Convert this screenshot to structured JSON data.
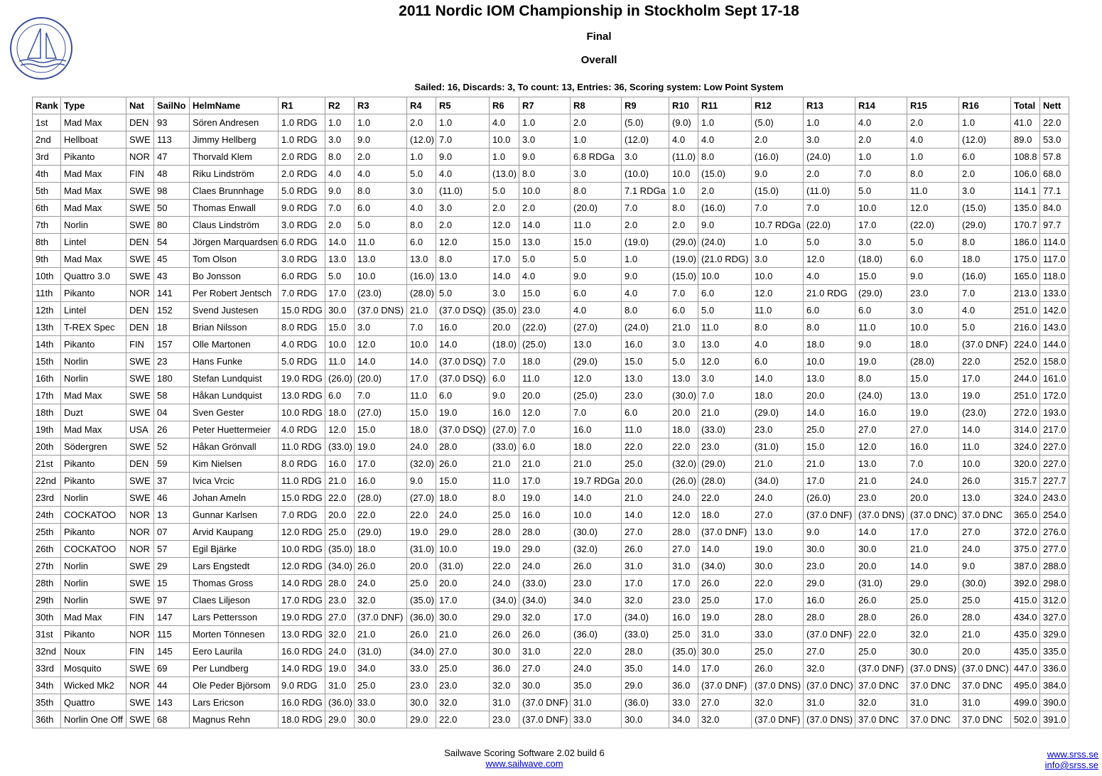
{
  "header": {
    "title": "2011 Nordic IOM Championship in Stockholm Sept 17-18",
    "subtitle": "Final",
    "heading": "Overall",
    "summary": "Sailed: 16, Discards: 3, To count: 13, Entries: 36, Scoring system: Low Point System"
  },
  "table": {
    "columns": [
      "Rank",
      "Type",
      "Nat",
      "SailNo",
      "HelmName",
      "R1",
      "R2",
      "R3",
      "R4",
      "R5",
      "R6",
      "R7",
      "R8",
      "R9",
      "R10",
      "R11",
      "R12",
      "R13",
      "R14",
      "R15",
      "R16",
      "Total",
      "Nett"
    ],
    "rows": [
      [
        "1st",
        "Mad Max",
        "DEN",
        "93",
        "Sören Andresen",
        "1.0 RDG",
        "1.0",
        "1.0",
        "2.0",
        "1.0",
        "4.0",
        "1.0",
        "2.0",
        "(5.0)",
        "(9.0)",
        "1.0",
        "(5.0)",
        "1.0",
        "4.0",
        "2.0",
        "1.0",
        "41.0",
        "22.0"
      ],
      [
        "2nd",
        "Hellboat",
        "SWE",
        "113",
        "Jimmy Hellberg",
        "1.0 RDG",
        "3.0",
        "9.0",
        "(12.0)",
        "7.0",
        "10.0",
        "3.0",
        "1.0",
        "(12.0)",
        "4.0",
        "4.0",
        "2.0",
        "3.0",
        "2.0",
        "4.0",
        "(12.0)",
        "89.0",
        "53.0"
      ],
      [
        "3rd",
        "Pikanto",
        "NOR",
        "47",
        "Thorvald Klem",
        "2.0 RDG",
        "8.0",
        "2.0",
        "1.0",
        "9.0",
        "1.0",
        "9.0",
        "6.8 RDGa",
        "3.0",
        "(11.0)",
        "8.0",
        "(16.0)",
        "(24.0)",
        "1.0",
        "1.0",
        "6.0",
        "108.8",
        "57.8"
      ],
      [
        "4th",
        "Mad Max",
        "FIN",
        "48",
        "Riku Lindström",
        "2.0 RDG",
        "4.0",
        "4.0",
        "5.0",
        "4.0",
        "(13.0)",
        "8.0",
        "3.0",
        "(10.0)",
        "10.0",
        "(15.0)",
        "9.0",
        "2.0",
        "7.0",
        "8.0",
        "2.0",
        "106.0",
        "68.0"
      ],
      [
        "5th",
        "Mad Max",
        "SWE",
        "98",
        "Claes Brunnhage",
        "5.0 RDG",
        "9.0",
        "8.0",
        "3.0",
        "(11.0)",
        "5.0",
        "10.0",
        "8.0",
        "7.1 RDGa",
        "1.0",
        "2.0",
        "(15.0)",
        "(11.0)",
        "5.0",
        "11.0",
        "3.0",
        "114.1",
        "77.1"
      ],
      [
        "6th",
        "Mad Max",
        "SWE",
        "50",
        "Thomas Enwall",
        "9.0 RDG",
        "7.0",
        "6.0",
        "4.0",
        "3.0",
        "2.0",
        "2.0",
        "(20.0)",
        "7.0",
        "8.0",
        "(16.0)",
        "7.0",
        "7.0",
        "10.0",
        "12.0",
        "(15.0)",
        "135.0",
        "84.0"
      ],
      [
        "7th",
        "Norlin",
        "SWE",
        "80",
        "Claus Lindström",
        "3.0 RDG",
        "2.0",
        "5.0",
        "8.0",
        "2.0",
        "12.0",
        "14.0",
        "11.0",
        "2.0",
        "2.0",
        "9.0",
        "10.7 RDGa",
        "(22.0)",
        "17.0",
        "(22.0)",
        "(29.0)",
        "170.7",
        "97.7"
      ],
      [
        "8th",
        "Lintel",
        "DEN",
        "54",
        "Jörgen Marquardsen",
        "6.0 RDG",
        "14.0",
        "11.0",
        "6.0",
        "12.0",
        "15.0",
        "13.0",
        "15.0",
        "(19.0)",
        "(29.0)",
        "(24.0)",
        "1.0",
        "5.0",
        "3.0",
        "5.0",
        "8.0",
        "186.0",
        "114.0"
      ],
      [
        "9th",
        "Mad Max",
        "SWE",
        "45",
        "Tom Olson",
        "3.0 RDG",
        "13.0",
        "13.0",
        "13.0",
        "8.0",
        "17.0",
        "5.0",
        "5.0",
        "1.0",
        "(19.0)",
        "(21.0 RDG)",
        "3.0",
        "12.0",
        "(18.0)",
        "6.0",
        "18.0",
        "175.0",
        "117.0"
      ],
      [
        "10th",
        "Quattro 3.0",
        "SWE",
        "43",
        "Bo Jonsson",
        "6.0 RDG",
        "5.0",
        "10.0",
        "(16.0)",
        "13.0",
        "14.0",
        "4.0",
        "9.0",
        "9.0",
        "(15.0)",
        "10.0",
        "10.0",
        "4.0",
        "15.0",
        "9.0",
        "(16.0)",
        "165.0",
        "118.0"
      ],
      [
        "11th",
        "Pikanto",
        "NOR",
        "141",
        "Per Robert Jentsch",
        "7.0 RDG",
        "17.0",
        "(23.0)",
        "(28.0)",
        "5.0",
        "3.0",
        "15.0",
        "6.0",
        "4.0",
        "7.0",
        "6.0",
        "12.0",
        "21.0 RDG",
        "(29.0)",
        "23.0",
        "7.0",
        "213.0",
        "133.0"
      ],
      [
        "12th",
        "Lintel",
        "DEN",
        "152",
        "Svend Justesen",
        "15.0 RDG",
        "30.0",
        "(37.0 DNS)",
        "21.0",
        "(37.0 DSQ)",
        "(35.0)",
        "23.0",
        "4.0",
        "8.0",
        "6.0",
        "5.0",
        "11.0",
        "6.0",
        "6.0",
        "3.0",
        "4.0",
        "251.0",
        "142.0"
      ],
      [
        "13th",
        "T-REX Spec",
        "DEN",
        "18",
        "Brian Nilsson",
        "8.0 RDG",
        "15.0",
        "3.0",
        "7.0",
        "16.0",
        "20.0",
        "(22.0)",
        "(27.0)",
        "(24.0)",
        "21.0",
        "11.0",
        "8.0",
        "8.0",
        "11.0",
        "10.0",
        "5.0",
        "216.0",
        "143.0"
      ],
      [
        "14th",
        "Pikanto",
        "FIN",
        "157",
        "Olle Martonen",
        "4.0 RDG",
        "10.0",
        "12.0",
        "10.0",
        "14.0",
        "(18.0)",
        "(25.0)",
        "13.0",
        "16.0",
        "3.0",
        "13.0",
        "4.0",
        "18.0",
        "9.0",
        "18.0",
        "(37.0 DNF)",
        "224.0",
        "144.0"
      ],
      [
        "15th",
        "Norlin",
        "SWE",
        "23",
        "Hans Funke",
        "5.0 RDG",
        "11.0",
        "14.0",
        "14.0",
        "(37.0 DSQ)",
        "7.0",
        "18.0",
        "(29.0)",
        "15.0",
        "5.0",
        "12.0",
        "6.0",
        "10.0",
        "19.0",
        "(28.0)",
        "22.0",
        "252.0",
        "158.0"
      ],
      [
        "16th",
        "Norlin",
        "SWE",
        "180",
        "Stefan Lundquist",
        "19.0 RDG",
        "(26.0)",
        "(20.0)",
        "17.0",
        "(37.0 DSQ)",
        "6.0",
        "11.0",
        "12.0",
        "13.0",
        "13.0",
        "3.0",
        "14.0",
        "13.0",
        "8.0",
        "15.0",
        "17.0",
        "244.0",
        "161.0"
      ],
      [
        "17th",
        "Mad Max",
        "SWE",
        "58",
        "Håkan Lundquist",
        "13.0 RDG",
        "6.0",
        "7.0",
        "11.0",
        "6.0",
        "9.0",
        "20.0",
        "(25.0)",
        "23.0",
        "(30.0)",
        "7.0",
        "18.0",
        "20.0",
        "(24.0)",
        "13.0",
        "19.0",
        "251.0",
        "172.0"
      ],
      [
        "18th",
        "Duzt",
        "SWE",
        "04",
        "Sven Gester",
        "10.0 RDG",
        "18.0",
        "(27.0)",
        "15.0",
        "19.0",
        "16.0",
        "12.0",
        "7.0",
        "6.0",
        "20.0",
        "21.0",
        "(29.0)",
        "14.0",
        "16.0",
        "19.0",
        "(23.0)",
        "272.0",
        "193.0"
      ],
      [
        "19th",
        "Mad Max",
        "USA",
        "26",
        "Peter Huettermeier",
        "4.0 RDG",
        "12.0",
        "15.0",
        "18.0",
        "(37.0 DSQ)",
        "(27.0)",
        "7.0",
        "16.0",
        "11.0",
        "18.0",
        "(33.0)",
        "23.0",
        "25.0",
        "27.0",
        "27.0",
        "14.0",
        "314.0",
        "217.0"
      ],
      [
        "20th",
        "Södergren",
        "SWE",
        "52",
        "Håkan Grönvall",
        "11.0 RDG",
        "(33.0)",
        "19.0",
        "24.0",
        "28.0",
        "(33.0)",
        "6.0",
        "18.0",
        "22.0",
        "22.0",
        "23.0",
        "(31.0)",
        "15.0",
        "12.0",
        "16.0",
        "11.0",
        "324.0",
        "227.0"
      ],
      [
        "21st",
        "Pikanto",
        "DEN",
        "59",
        "Kim Nielsen",
        "8.0 RDG",
        "16.0",
        "17.0",
        "(32.0)",
        "26.0",
        "21.0",
        "21.0",
        "21.0",
        "25.0",
        "(32.0)",
        "(29.0)",
        "21.0",
        "21.0",
        "13.0",
        "7.0",
        "10.0",
        "320.0",
        "227.0"
      ],
      [
        "22nd",
        "Pikanto",
        "SWE",
        "37",
        "Ivica Vrcic",
        "11.0 RDG",
        "21.0",
        "16.0",
        "9.0",
        "15.0",
        "11.0",
        "17.0",
        "19.7 RDGa",
        "20.0",
        "(26.0)",
        "(28.0)",
        "(34.0)",
        "17.0",
        "21.0",
        "24.0",
        "26.0",
        "315.7",
        "227.7"
      ],
      [
        "23rd",
        "Norlin",
        "SWE",
        "46",
        "Johan Ameln",
        "15.0 RDG",
        "22.0",
        "(28.0)",
        "(27.0)",
        "18.0",
        "8.0",
        "19.0",
        "14.0",
        "21.0",
        "24.0",
        "22.0",
        "24.0",
        "(26.0)",
        "23.0",
        "20.0",
        "13.0",
        "324.0",
        "243.0"
      ],
      [
        "24th",
        "COCKATOO",
        "NOR",
        "13",
        "Gunnar Karlsen",
        "7.0 RDG",
        "20.0",
        "22.0",
        "22.0",
        "24.0",
        "25.0",
        "16.0",
        "10.0",
        "14.0",
        "12.0",
        "18.0",
        "27.0",
        "(37.0 DNF)",
        "(37.0 DNS)",
        "(37.0 DNC)",
        "37.0 DNC",
        "365.0",
        "254.0"
      ],
      [
        "25th",
        "Pikanto",
        "NOR",
        "07",
        "Arvid Kaupang",
        "12.0 RDG",
        "25.0",
        "(29.0)",
        "19.0",
        "29.0",
        "28.0",
        "28.0",
        "(30.0)",
        "27.0",
        "28.0",
        "(37.0 DNF)",
        "13.0",
        "9.0",
        "14.0",
        "17.0",
        "27.0",
        "372.0",
        "276.0"
      ],
      [
        "26th",
        "COCKATOO",
        "NOR",
        "57",
        "Egil Bjärke",
        "10.0 RDG",
        "(35.0)",
        "18.0",
        "(31.0)",
        "10.0",
        "19.0",
        "29.0",
        "(32.0)",
        "26.0",
        "27.0",
        "14.0",
        "19.0",
        "30.0",
        "30.0",
        "21.0",
        "24.0",
        "375.0",
        "277.0"
      ],
      [
        "27th",
        "Norlin",
        "SWE",
        "29",
        "Lars Engstedt",
        "12.0 RDG",
        "(34.0)",
        "26.0",
        "20.0",
        "(31.0)",
        "22.0",
        "24.0",
        "26.0",
        "31.0",
        "31.0",
        "(34.0)",
        "30.0",
        "23.0",
        "20.0",
        "14.0",
        "9.0",
        "387.0",
        "288.0"
      ],
      [
        "28th",
        "Norlin",
        "SWE",
        "15",
        "Thomas Gross",
        "14.0 RDG",
        "28.0",
        "24.0",
        "25.0",
        "20.0",
        "24.0",
        "(33.0)",
        "23.0",
        "17.0",
        "17.0",
        "26.0",
        "22.0",
        "29.0",
        "(31.0)",
        "29.0",
        "(30.0)",
        "392.0",
        "298.0"
      ],
      [
        "29th",
        "Norlin",
        "SWE",
        "97",
        "Claes Liljeson",
        "17.0 RDG",
        "23.0",
        "32.0",
        "(35.0)",
        "17.0",
        "(34.0)",
        "(34.0)",
        "34.0",
        "32.0",
        "23.0",
        "25.0",
        "17.0",
        "16.0",
        "26.0",
        "25.0",
        "25.0",
        "415.0",
        "312.0"
      ],
      [
        "30th",
        "Mad Max",
        "FIN",
        "147",
        "Lars Pettersson",
        "19.0 RDG",
        "27.0",
        "(37.0 DNF)",
        "(36.0)",
        "30.0",
        "29.0",
        "32.0",
        "17.0",
        "(34.0)",
        "16.0",
        "19.0",
        "28.0",
        "28.0",
        "28.0",
        "26.0",
        "28.0",
        "434.0",
        "327.0"
      ],
      [
        "31st",
        "Pikanto",
        "NOR",
        "115",
        "Morten Tönnesen",
        "13.0 RDG",
        "32.0",
        "21.0",
        "26.0",
        "21.0",
        "26.0",
        "26.0",
        "(36.0)",
        "(33.0)",
        "25.0",
        "31.0",
        "33.0",
        "(37.0 DNF)",
        "22.0",
        "32.0",
        "21.0",
        "435.0",
        "329.0"
      ],
      [
        "32nd",
        "Noux",
        "FIN",
        "145",
        "Eero Laurila",
        "16.0 RDG",
        "24.0",
        "(31.0)",
        "(34.0)",
        "27.0",
        "30.0",
        "31.0",
        "22.0",
        "28.0",
        "(35.0)",
        "30.0",
        "25.0",
        "27.0",
        "25.0",
        "30.0",
        "20.0",
        "435.0",
        "335.0"
      ],
      [
        "33rd",
        "Mosquito",
        "SWE",
        "69",
        "Per Lundberg",
        "14.0 RDG",
        "19.0",
        "34.0",
        "33.0",
        "25.0",
        "36.0",
        "27.0",
        "24.0",
        "35.0",
        "14.0",
        "17.0",
        "26.0",
        "32.0",
        "(37.0 DNF)",
        "(37.0 DNS)",
        "(37.0 DNC)",
        "447.0",
        "336.0"
      ],
      [
        "34th",
        "Wicked Mk2",
        "NOR",
        "44",
        "Ole Peder Björsom",
        "9.0 RDG",
        "31.0",
        "25.0",
        "23.0",
        "23.0",
        "32.0",
        "30.0",
        "35.0",
        "29.0",
        "36.0",
        "(37.0 DNF)",
        "(37.0 DNS)",
        "(37.0 DNC)",
        "37.0 DNC",
        "37.0 DNC",
        "37.0 DNC",
        "495.0",
        "384.0"
      ],
      [
        "35th",
        "Quattro",
        "SWE",
        "143",
        "Lars Ericson",
        "16.0 RDG",
        "(36.0)",
        "33.0",
        "30.0",
        "32.0",
        "31.0",
        "(37.0 DNF)",
        "31.0",
        "(36.0)",
        "33.0",
        "27.0",
        "32.0",
        "31.0",
        "32.0",
        "31.0",
        "31.0",
        "499.0",
        "390.0"
      ],
      [
        "36th",
        "Norlin One Off",
        "SWE",
        "68",
        "Magnus Rehn",
        "18.0 RDG",
        "29.0",
        "30.0",
        "29.0",
        "22.0",
        "23.0",
        "(37.0 DNF)",
        "33.0",
        "30.0",
        "34.0",
        "32.0",
        "(37.0 DNF)",
        "(37.0 DNS)",
        "37.0 DNC",
        "37.0 DNC",
        "37.0 DNC",
        "502.0",
        "391.0"
      ]
    ]
  },
  "footer": {
    "software": "Sailwave Scoring Software 2.02 build 6",
    "link": "www.sailwave.com",
    "site": "www.srss.se",
    "email": "info@srss.se"
  }
}
